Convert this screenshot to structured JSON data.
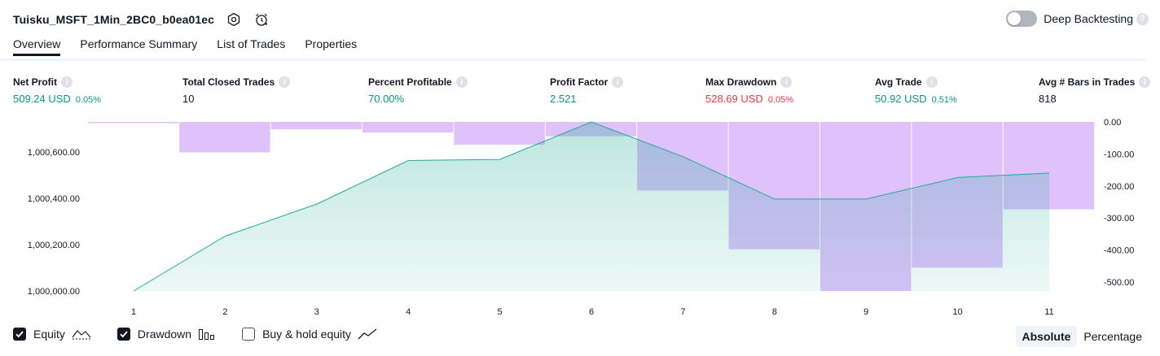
{
  "header": {
    "strategy_name": "Tuisku_MSFT_1Min_2BC0_b0ea01ec",
    "deep_backtesting_label": "Deep Backtesting",
    "help_glyph": "?"
  },
  "tabs": [
    {
      "label": "Overview",
      "active": true
    },
    {
      "label": "Performance Summary",
      "active": false
    },
    {
      "label": "List of Trades",
      "active": false
    },
    {
      "label": "Properties",
      "active": false
    }
  ],
  "metrics": {
    "net_profit": {
      "label": "Net Profit",
      "value": "509.24 USD",
      "pct": "0.05%"
    },
    "total_closed_trades": {
      "label": "Total Closed Trades",
      "value": "10"
    },
    "percent_profitable": {
      "label": "Percent Profitable",
      "value": "70.00%"
    },
    "profit_factor": {
      "label": "Profit Factor",
      "value": "2.521"
    },
    "max_drawdown": {
      "label": "Max Drawdown",
      "value": "528.69 USD",
      "pct": "0.05%"
    },
    "avg_trade": {
      "label": "Avg Trade",
      "value": "50.92 USD",
      "pct": "0.51%"
    },
    "avg_bars": {
      "label": "Avg # Bars in Trades",
      "value": "818"
    }
  },
  "colors": {
    "positive": "#089981",
    "negative": "#f23645",
    "equity_line": "#22ab94",
    "drawdown_fill": "#d1a8fb"
  },
  "chart_data": {
    "type": "area",
    "x": [
      1,
      2,
      3,
      4,
      5,
      6,
      7,
      8,
      9,
      10,
      11
    ],
    "series": [
      {
        "axis": "left",
        "values": [
          1000000,
          1000237,
          1000375,
          1000563,
          1000568,
          1000730,
          1000580,
          1000397,
          1000397,
          1000490,
          1000509
        ]
      },
      {
        "axis": "right",
        "values": [
          -4,
          -95,
          -23,
          -33,
          -71,
          -45,
          -214,
          -398,
          -528,
          -455,
          -273
        ]
      }
    ],
    "left_axis": {
      "ticks": [
        "1,000,000.00",
        "1,000,200.00",
        "1,000,400.00",
        "1,000,600.00"
      ],
      "tick_values": [
        1000000,
        1000200,
        1000400,
        1000600
      ]
    },
    "right_axis": {
      "ticks": [
        "0.00",
        "-100.00",
        "-200.00",
        "-300.00",
        "-400.00",
        "-500.00"
      ],
      "tick_values": [
        0,
        -100,
        -200,
        -300,
        -400,
        -500
      ]
    },
    "x_ticks": [
      "1",
      "2",
      "3",
      "4",
      "5",
      "6",
      "7",
      "8",
      "9",
      "10",
      "11"
    ]
  },
  "legend": {
    "equity": {
      "label": "Equity",
      "checked": true
    },
    "drawdown": {
      "label": "Drawdown",
      "checked": true
    },
    "buy_hold": {
      "label": "Buy & hold equity",
      "checked": false
    }
  },
  "mode": {
    "absolute": "Absolute",
    "percentage": "Percentage",
    "selected": "Absolute"
  }
}
